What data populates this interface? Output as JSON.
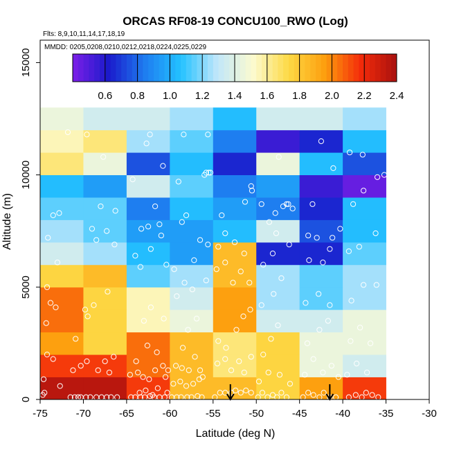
{
  "chart_data": {
    "type": "heatmap",
    "title": "ORCAS RF08-19 CONCU100_RWO (Log)",
    "flights_note": "Flts: 8,9,10,11,14,17,18,19",
    "dates_note": "MMDD: 0205,0208,0210,0212,0218,0224,0225,0229",
    "xlabel": "Latitude (deg N)",
    "ylabel": "Altitude (m)",
    "xlim": [
      -75,
      -30
    ],
    "ylim": [
      0,
      16000
    ],
    "x_ticks": [
      -75,
      -70,
      -65,
      -60,
      -55,
      -50,
      -45,
      -40,
      -35,
      -30
    ],
    "y_ticks": [
      0,
      5000,
      10000,
      15000
    ],
    "x_bin_edges": [
      -75,
      -70,
      -65,
      -60,
      -55,
      -50,
      -45,
      -40,
      -35
    ],
    "y_bin_size": 1000,
    "colorbar": {
      "min": 0.4,
      "max": 2.4,
      "ticks": [
        0.6,
        0.8,
        1.0,
        1.2,
        1.4,
        1.6,
        1.8,
        2.0,
        2.2,
        2.4
      ],
      "colors": [
        "#7c1fe8",
        "#1a1acb",
        "#1e7cf0",
        "#23c2ff",
        "#bfe6fa",
        "#fcfbd0",
        "#fdd945",
        "#fd9f0e",
        "#f42b0a",
        "#a8110f"
      ]
    },
    "grid_values": [
      [
        2.35,
        2.35,
        2.15,
        1.85,
        1.85,
        1.75,
        1.95,
        2.15
      ],
      [
        2.15,
        2.15,
        2.05,
        1.85,
        1.65,
        1.75,
        1.45,
        1.35
      ],
      [
        1.95,
        1.75,
        2.05,
        1.85,
        1.65,
        1.75,
        1.45,
        1.45
      ],
      [
        2.05,
        1.75,
        1.55,
        1.45,
        1.95,
        1.35,
        1.35,
        1.45
      ],
      [
        2.05,
        1.75,
        1.55,
        1.35,
        1.95,
        1.25,
        1.15,
        1.25
      ],
      [
        1.75,
        1.85,
        1.15,
        1.25,
        1.85,
        1.25,
        1.15,
        1.25
      ],
      [
        1.35,
        1.25,
        1.05,
        0.95,
        1.85,
        0.65,
        0.65,
        1.15
      ],
      [
        1.25,
        1.15,
        0.95,
        0.95,
        1.05,
        1.35,
        0.75,
        1.05
      ],
      [
        1.15,
        1.15,
        0.85,
        1.05,
        0.95,
        0.85,
        0.65,
        1.05
      ],
      [
        1.05,
        0.95,
        1.35,
        1.15,
        0.85,
        0.95,
        0.55,
        0.45
      ],
      [
        1.65,
        1.45,
        0.75,
        1.05,
        0.65,
        1.45,
        1.05,
        0.75
      ],
      [
        1.55,
        1.65,
        1.25,
        1.15,
        0.85,
        0.55,
        0.65,
        1.05
      ],
      [
        1.45,
        1.35,
        1.35,
        1.25,
        1.05,
        1.35,
        1.35,
        1.25
      ]
    ],
    "sample_points": [
      [
        -74.7,
        200
      ],
      [
        -74.5,
        300
      ],
      [
        -74.2,
        2000
      ],
      [
        -74.3,
        3400
      ],
      [
        -73.8,
        4300
      ],
      [
        -73.2,
        4100
      ],
      [
        -74.1,
        7200
      ],
      [
        -73.5,
        8200
      ],
      [
        -72.8,
        8300
      ],
      [
        -73.0,
        6100
      ],
      [
        -74.2,
        5000
      ],
      [
        -73.5,
        1800
      ],
      [
        -74.6,
        900
      ],
      [
        -72.7,
        600
      ],
      [
        -71.5,
        100
      ],
      [
        -71.0,
        100
      ],
      [
        -70.6,
        100
      ],
      [
        -70.3,
        100
      ],
      [
        -69.7,
        100
      ],
      [
        -69.2,
        100
      ],
      [
        -68.5,
        100
      ],
      [
        -67.9,
        100
      ],
      [
        -67.3,
        100
      ],
      [
        -66.8,
        100
      ],
      [
        -66.1,
        100
      ],
      [
        -71.2,
        1300
      ],
      [
        -70.9,
        2700
      ],
      [
        -70.3,
        1500
      ],
      [
        -69.6,
        1700
      ],
      [
        -68.3,
        1300
      ],
      [
        -67.5,
        1700
      ],
      [
        -67.0,
        1200
      ],
      [
        -66.5,
        1900
      ],
      [
        -69.8,
        4000
      ],
      [
        -69.5,
        3700
      ],
      [
        -68.8,
        4200
      ],
      [
        -67.2,
        4800
      ],
      [
        -68.5,
        7100
      ],
      [
        -67.3,
        7500
      ],
      [
        -69.0,
        7600
      ],
      [
        -66.4,
        6900
      ],
      [
        -68.0,
        8600
      ],
      [
        -71.8,
        11900
      ],
      [
        -69.6,
        11800
      ],
      [
        -67.7,
        10800
      ],
      [
        -66.3,
        8400
      ],
      [
        -64.5,
        100
      ],
      [
        -64.0,
        100
      ],
      [
        -63.4,
        100
      ],
      [
        -62.9,
        100
      ],
      [
        -62.3,
        150
      ],
      [
        -61.8,
        100
      ],
      [
        -61.2,
        100
      ],
      [
        -60.6,
        100
      ],
      [
        -63.5,
        300
      ],
      [
        -62.8,
        400
      ],
      [
        -62.0,
        200
      ],
      [
        -61.4,
        500
      ],
      [
        -60.3,
        300
      ],
      [
        -64.6,
        1100
      ],
      [
        -63.7,
        1200
      ],
      [
        -63.1,
        1000
      ],
      [
        -62.4,
        900
      ],
      [
        -61.7,
        1300
      ],
      [
        -60.8,
        1500
      ],
      [
        -60.2,
        1300
      ],
      [
        -63.9,
        1700
      ],
      [
        -62.6,
        2400
      ],
      [
        -61.5,
        2100
      ],
      [
        -60.5,
        1000
      ],
      [
        -63.0,
        3500
      ],
      [
        -62.2,
        4100
      ],
      [
        -60.7,
        3600
      ],
      [
        -64.0,
        6400
      ],
      [
        -63.4,
        5900
      ],
      [
        -62.2,
        6700
      ],
      [
        -61.0,
        7300
      ],
      [
        -60.4,
        6000
      ],
      [
        -63.3,
        7600
      ],
      [
        -62.5,
        7700
      ],
      [
        -61.2,
        7800
      ],
      [
        -61.7,
        8600
      ],
      [
        -62.7,
        11400
      ],
      [
        -62.3,
        11800
      ],
      [
        -64.3,
        9800
      ],
      [
        -60.8,
        10400
      ],
      [
        -59.8,
        100
      ],
      [
        -59.2,
        100
      ],
      [
        -58.7,
        100
      ],
      [
        -58.0,
        100
      ],
      [
        -57.5,
        100
      ],
      [
        -56.8,
        150
      ],
      [
        -56.3,
        100
      ],
      [
        -59.6,
        700
      ],
      [
        -58.8,
        800
      ],
      [
        -58.1,
        600
      ],
      [
        -57.3,
        700
      ],
      [
        -56.6,
        900
      ],
      [
        -59.3,
        1500
      ],
      [
        -58.6,
        1400
      ],
      [
        -57.8,
        1300
      ],
      [
        -57.1,
        1900
      ],
      [
        -56.5,
        1300
      ],
      [
        -58.5,
        2300
      ],
      [
        -57.9,
        3100
      ],
      [
        -56.9,
        3600
      ],
      [
        -56.2,
        1000
      ],
      [
        -59.2,
        4600
      ],
      [
        -58.3,
        5200
      ],
      [
        -57.4,
        4900
      ],
      [
        -55.8,
        5300
      ],
      [
        -59.5,
        5800
      ],
      [
        -57.2,
        6200
      ],
      [
        -58.6,
        7900
      ],
      [
        -58.1,
        8200
      ],
      [
        -56.5,
        7100
      ],
      [
        -55.6,
        6900
      ],
      [
        -59.0,
        9700
      ],
      [
        -56.0,
        10000
      ],
      [
        -55.8,
        10100
      ],
      [
        -55.5,
        10100
      ],
      [
        -55.3,
        10100
      ],
      [
        -58.4,
        11800
      ],
      [
        -55.6,
        11800
      ],
      [
        -54.8,
        100
      ],
      [
        -54.2,
        300
      ],
      [
        -53.6,
        300
      ],
      [
        -52.9,
        300
      ],
      [
        -52.4,
        400
      ],
      [
        -51.8,
        300
      ],
      [
        -51.2,
        400
      ],
      [
        -50.6,
        300
      ],
      [
        -54.5,
        1600
      ],
      [
        -53.6,
        1800
      ],
      [
        -52.9,
        1300
      ],
      [
        -52.0,
        1700
      ],
      [
        -51.4,
        1200
      ],
      [
        -50.6,
        1900
      ],
      [
        -54.4,
        2600
      ],
      [
        -53.5,
        2300
      ],
      [
        -52.3,
        3100
      ],
      [
        -51.5,
        3700
      ],
      [
        -50.7,
        4000
      ],
      [
        -54.6,
        5800
      ],
      [
        -53.6,
        6100
      ],
      [
        -52.7,
        5200
      ],
      [
        -51.8,
        5700
      ],
      [
        -50.8,
        5200
      ],
      [
        -54.4,
        6800
      ],
      [
        -53.6,
        7400
      ],
      [
        -52.5,
        7000
      ],
      [
        -51.4,
        6500
      ],
      [
        -54.0,
        8200
      ],
      [
        -51.3,
        8800
      ],
      [
        -50.5,
        9300
      ],
      [
        -50.6,
        9500
      ],
      [
        -49.8,
        100
      ],
      [
        -49.3,
        300
      ],
      [
        -48.7,
        100
      ],
      [
        -48.1,
        200
      ],
      [
        -47.6,
        100
      ],
      [
        -47.1,
        300
      ],
      [
        -46.5,
        100
      ],
      [
        -49.7,
        800
      ],
      [
        -48.6,
        1200
      ],
      [
        -47.3,
        1100
      ],
      [
        -46.1,
        700
      ],
      [
        -49.2,
        2000
      ],
      [
        -48.3,
        2700
      ],
      [
        -47.5,
        3300
      ],
      [
        -49.4,
        4200
      ],
      [
        -48.0,
        4700
      ],
      [
        -47.1,
        5400
      ],
      [
        -49.2,
        6000
      ],
      [
        -48.1,
        6500
      ],
      [
        -46.2,
        6900
      ],
      [
        -48.5,
        7900
      ],
      [
        -47.8,
        8300
      ],
      [
        -46.9,
        8600
      ],
      [
        -46.5,
        8700
      ],
      [
        -46.3,
        8700
      ],
      [
        -49.4,
        8700
      ],
      [
        -47.7,
        7400
      ],
      [
        -45.8,
        8500
      ],
      [
        -47.4,
        10800
      ],
      [
        -44.6,
        100
      ],
      [
        -44.0,
        300
      ],
      [
        -43.4,
        200
      ],
      [
        -42.7,
        100
      ],
      [
        -42.2,
        300
      ],
      [
        -41.5,
        100
      ],
      [
        -40.8,
        100
      ],
      [
        -44.4,
        1100
      ],
      [
        -43.4,
        1800
      ],
      [
        -42.3,
        1200
      ],
      [
        -41.3,
        1500
      ],
      [
        -40.5,
        1000
      ],
      [
        -44.1,
        2500
      ],
      [
        -42.7,
        3100
      ],
      [
        -41.7,
        3500
      ],
      [
        -44.3,
        4300
      ],
      [
        -42.8,
        4700
      ],
      [
        -41.5,
        4200
      ],
      [
        -43.9,
        6200
      ],
      [
        -42.3,
        6100
      ],
      [
        -41.5,
        6700
      ],
      [
        -44.0,
        7300
      ],
      [
        -43.0,
        7200
      ],
      [
        -41.2,
        7200
      ],
      [
        -40.3,
        7600
      ],
      [
        -43.5,
        8700
      ],
      [
        -42.5,
        11500
      ],
      [
        -41.1,
        10300
      ],
      [
        -39.3,
        100
      ],
      [
        -38.5,
        200
      ],
      [
        -37.8,
        100
      ],
      [
        -37.3,
        300
      ],
      [
        -36.6,
        200
      ],
      [
        -35.9,
        100
      ],
      [
        -39.5,
        1100
      ],
      [
        -38.4,
        1600
      ],
      [
        -37.2,
        1200
      ],
      [
        -39.1,
        2600
      ],
      [
        -38.0,
        3200
      ],
      [
        -36.8,
        2500
      ],
      [
        -39.0,
        4400
      ],
      [
        -37.6,
        5100
      ],
      [
        -36.1,
        5100
      ],
      [
        -39.3,
        6600
      ],
      [
        -38.1,
        6800
      ],
      [
        -36.2,
        7400
      ],
      [
        -38.8,
        8700
      ],
      [
        -37.6,
        9300
      ],
      [
        -36.0,
        9900
      ],
      [
        -39.2,
        11000
      ],
      [
        -37.7,
        10900
      ],
      [
        -35.2,
        10000
      ]
    ],
    "arrows": [
      {
        "lat": -53.0,
        "label": "arrow-1"
      },
      {
        "lat": -41.5,
        "label": "arrow-2"
      }
    ]
  }
}
